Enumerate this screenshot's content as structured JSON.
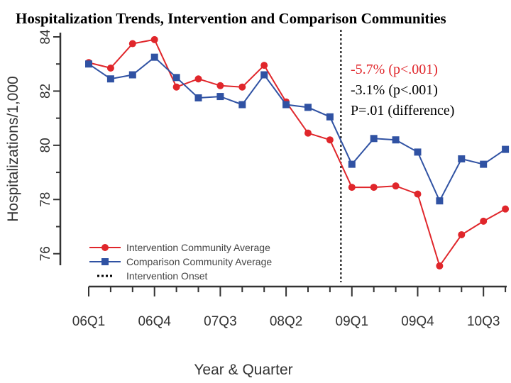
{
  "chart_data": {
    "type": "line",
    "title": "Hospitalization Trends, Intervention and Comparison Communities",
    "xlabel": "Year & Quarter",
    "ylabel": "Hospitalizations/1,000",
    "ylim": [
      75.6,
      84
    ],
    "yticks": [
      76,
      78,
      80,
      82,
      84
    ],
    "x_tick_labels": [
      "06Q1",
      "06Q4",
      "07Q3",
      "08Q2",
      "09Q1",
      "09Q4",
      "10Q3"
    ],
    "x_tick_label_every": 3,
    "num_quarters": 20,
    "intervention_onset_between": [
      12,
      13
    ],
    "series": [
      {
        "name": "Intervention Community Average",
        "color": "#e0262b",
        "marker": "circle",
        "values": [
          83.05,
          82.85,
          83.75,
          83.9,
          82.15,
          82.45,
          82.2,
          82.15,
          82.95,
          81.6,
          80.45,
          80.2,
          78.45,
          78.45,
          78.5,
          78.2,
          75.55,
          76.7,
          77.2,
          77.65
        ]
      },
      {
        "name": "Comparison Community Average",
        "color": "#3052a3",
        "marker": "square",
        "values": [
          83.0,
          82.45,
          82.6,
          83.25,
          82.5,
          81.75,
          81.8,
          81.5,
          82.6,
          81.5,
          81.4,
          81.05,
          79.3,
          80.25,
          80.2,
          79.75,
          77.95,
          79.5,
          79.3,
          79.85
        ]
      }
    ],
    "legend": {
      "position": "bottom-left",
      "entries": [
        {
          "label": "Intervention Community Average",
          "style": "line-circle",
          "color": "#e0262b"
        },
        {
          "label": "Comparison Community Average",
          "style": "line-square",
          "color": "#3052a3"
        },
        {
          "label": "Intervention Onset",
          "style": "dotted",
          "color": "#000000"
        }
      ]
    },
    "annotations": [
      "-5.7% (p<.001)",
      "-3.1% (p<.001)",
      "P=.01 (difference)"
    ],
    "annotation_colors": [
      "#e0262b",
      "#000000",
      "#000000"
    ],
    "grid": false
  }
}
